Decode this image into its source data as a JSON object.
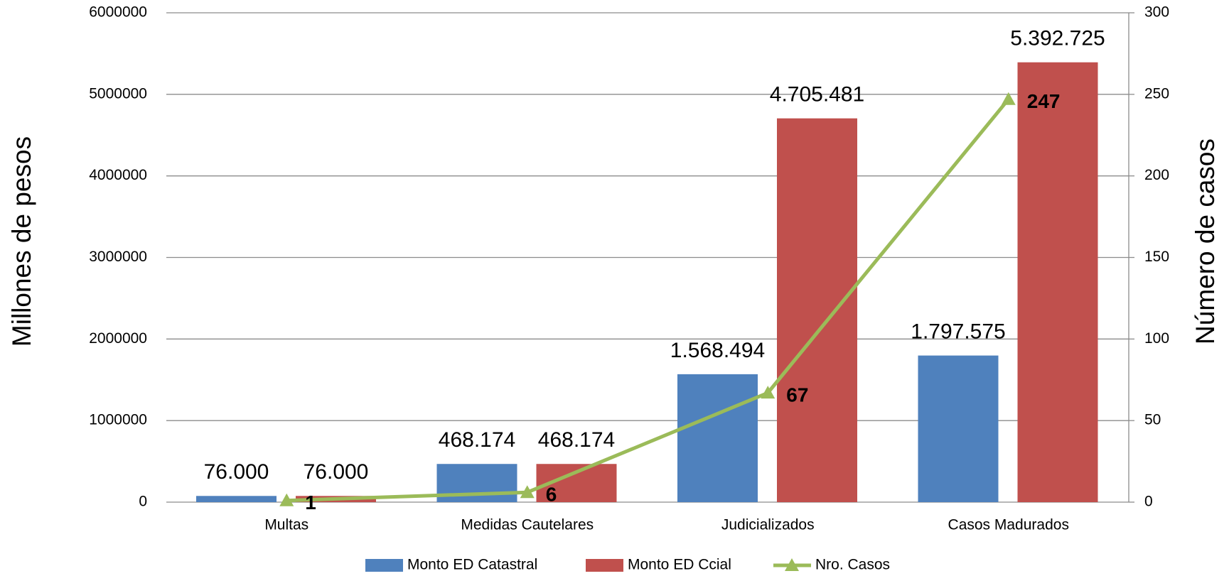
{
  "chart_data": {
    "type": "bar",
    "categories": [
      "Multas",
      "Medidas Cautelares",
      "Judicializados",
      "Casos Madurados"
    ],
    "series": [
      {
        "name": "Monto ED Catastral",
        "color": "#4f81bd",
        "values": [
          76000,
          468174,
          1568494,
          1797575
        ],
        "value_labels": [
          "76.000",
          "468.174",
          "1.568.494",
          "1.797.575"
        ]
      },
      {
        "name": "Monto ED Ccial",
        "color": "#c0504d",
        "values": [
          76000,
          468174,
          4705481,
          5392725
        ],
        "value_labels": [
          "76.000",
          "468.174",
          "4.705.481",
          "5.392.725"
        ]
      },
      {
        "name": "Nro. Casos",
        "color": "#9bbb59",
        "type": "line",
        "axis": "y2",
        "values": [
          1,
          6,
          67,
          247
        ]
      }
    ],
    "ylabel": "Millones de pesos",
    "y2label": "Número de casos",
    "ylim": [
      0,
      6000000
    ],
    "yticks": [
      0,
      1000000,
      2000000,
      3000000,
      4000000,
      5000000,
      6000000
    ],
    "y2lim": [
      0,
      300
    ],
    "y2ticks": [
      0,
      50,
      100,
      150,
      200,
      250,
      300
    ],
    "grid": true,
    "legend": "bottom"
  }
}
